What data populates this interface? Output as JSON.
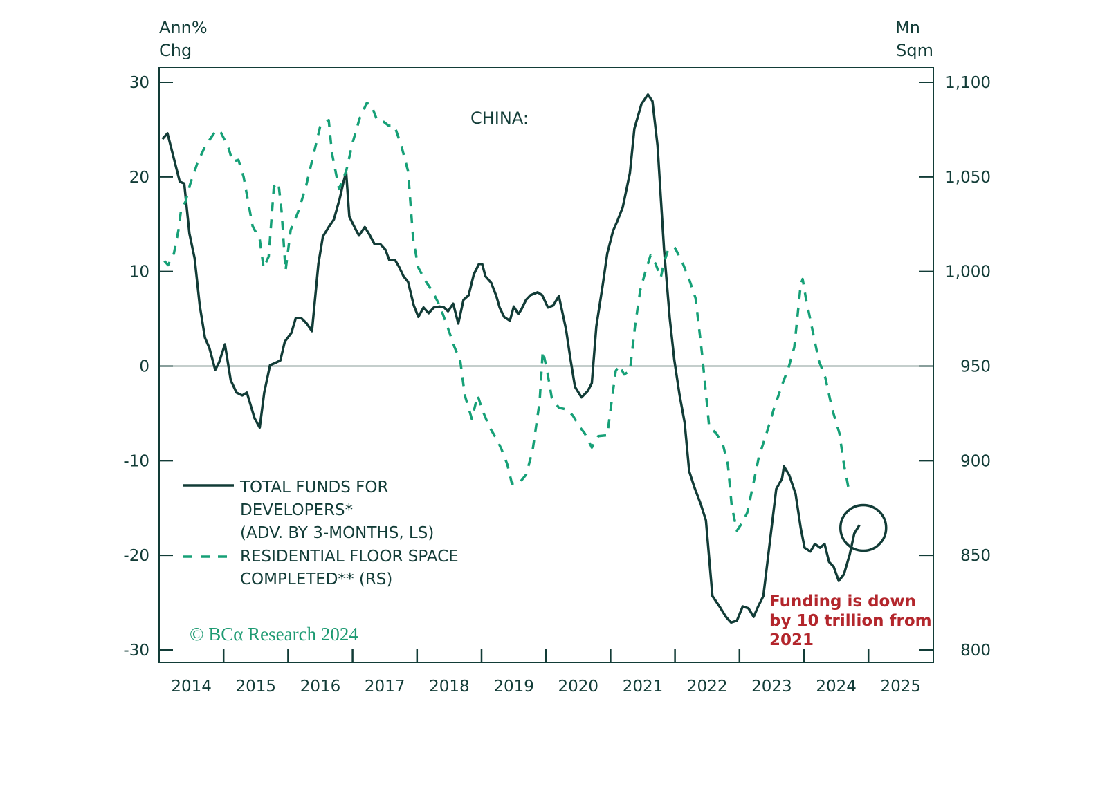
{
  "chart_data": {
    "type": "line",
    "title": "CHINA:",
    "left_axis": {
      "label_lines": [
        "Ann%",
        "Chg"
      ],
      "range": [
        -30,
        30
      ],
      "ticks": [
        30,
        20,
        10,
        0,
        -10,
        -20,
        -30
      ],
      "tick_labels": [
        "30",
        "20",
        "10",
        "0",
        "-10",
        "-20",
        "-30"
      ]
    },
    "right_axis": {
      "label_lines": [
        "Mn",
        "Sqm"
      ],
      "range": [
        800,
        1100
      ],
      "ticks": [
        1100,
        1050,
        1000,
        950,
        900,
        850,
        800
      ],
      "tick_labels": [
        "1,100",
        "1,050",
        "1,000",
        "950",
        "900",
        "850",
        "800"
      ]
    },
    "x_axis": {
      "range": [
        2014,
        2026
      ],
      "tick_labels": [
        "2014",
        "2015",
        "2016",
        "2017",
        "2018",
        "2019",
        "2020",
        "2021",
        "2022",
        "2023",
        "2024",
        "2025"
      ]
    },
    "grid": false,
    "zero_line": true,
    "legend_placement": "bottom-left",
    "legend": [
      {
        "lines": [
          "TOTAL FUNDS FOR",
          "DEVELOPERS*",
          "(ADV. BY 3-MONTHS, LS)"
        ],
        "style": "solid"
      },
      {
        "lines": [
          "RESIDENTIAL FLOOR SPACE",
          "COMPLETED** (RS)"
        ],
        "style": "dashed"
      }
    ],
    "colors": {
      "funds": "#123c37",
      "floor_space": "#16a077",
      "annotation": "#b3262c",
      "axis": "#123c37"
    },
    "series": [
      {
        "name": "TOTAL FUNDS FOR DEVELOPERS* (ADV. BY 3-MONTHS, LS)",
        "axis": "left",
        "style": "solid",
        "x": [
          2014.05,
          2014.13,
          2014.32,
          2014.39,
          2014.47,
          2014.55,
          2014.63,
          2014.71,
          2014.78,
          2014.87,
          2014.93,
          2015.02,
          2015.11,
          2015.2,
          2015.29,
          2015.36,
          2015.48,
          2015.56,
          2015.63,
          2015.72,
          2015.79,
          2015.88,
          2015.95,
          2016.05,
          2016.12,
          2016.2,
          2016.29,
          2016.37,
          2016.47,
          2016.54,
          2016.63,
          2016.71,
          2016.8,
          2016.86,
          2016.9,
          2016.95,
          2017.03,
          2017.1,
          2017.19,
          2017.27,
          2017.34,
          2017.43,
          2017.51,
          2017.57,
          2017.66,
          2017.72,
          2017.79,
          2017.86,
          2017.95,
          2018.02,
          2018.1,
          2018.18,
          2018.26,
          2018.35,
          2018.42,
          2018.48,
          2018.56,
          2018.64,
          2018.72,
          2018.8,
          2018.88,
          2018.96,
          2019.01,
          2019.06,
          2019.15,
          2019.23,
          2019.28,
          2019.35,
          2019.44,
          2019.5,
          2019.57,
          2019.61,
          2019.69,
          2019.76,
          2019.87,
          2019.94,
          2020.03,
          2020.11,
          2020.2,
          2020.31,
          2020.38,
          2020.45,
          2020.55,
          2020.65,
          2020.71,
          2020.78,
          2020.88,
          2020.95,
          2021.04,
          2021.11,
          2021.19,
          2021.3,
          2021.37,
          2021.48,
          2021.58,
          2021.65,
          2021.73,
          2021.83,
          2021.92,
          2021.99,
          2022.07,
          2022.15,
          2022.22,
          2022.3,
          2022.4,
          2022.48,
          2022.58,
          2022.69,
          2022.79,
          2022.87,
          2022.96,
          2023.05,
          2023.14,
          2023.22,
          2023.29,
          2023.37,
          2023.46,
          2023.57,
          2023.66,
          2023.69,
          2023.77,
          2023.87,
          2023.95,
          2024.01,
          2024.1,
          2024.17,
          2024.25,
          2024.32,
          2024.39,
          2024.46,
          2024.54,
          2024.62,
          2024.71,
          2024.78,
          2024.86
        ],
        "y": [
          24,
          24.6,
          19.5,
          19.3,
          14,
          11.4,
          6.4,
          3,
          1.9,
          -0.4,
          0.4,
          2.3,
          -1.5,
          -2.8,
          -3.1,
          -2.8,
          -5.5,
          -6.5,
          -2.8,
          0.1,
          0.3,
          0.6,
          2.6,
          3.5,
          5.1,
          5.1,
          4.5,
          3.7,
          10.8,
          13.7,
          14.7,
          15.5,
          17.7,
          19.5,
          20.5,
          15.8,
          14.7,
          13.8,
          14.7,
          13.8,
          12.9,
          12.9,
          12.3,
          11.2,
          11.2,
          10.5,
          9.5,
          8.9,
          6.4,
          5.2,
          6.2,
          5.6,
          6.2,
          6.3,
          6.2,
          5.8,
          6.6,
          4.5,
          7,
          7.5,
          9.7,
          10.8,
          10.8,
          9.5,
          8.8,
          7.4,
          6.2,
          5.2,
          4.8,
          6.3,
          5.5,
          5.9,
          7,
          7.5,
          7.8,
          7.5,
          6.2,
          6.4,
          7.4,
          3.9,
          0.7,
          -2.2,
          -3.3,
          -2.6,
          -1.8,
          4.2,
          8.6,
          11.9,
          14.3,
          15.4,
          16.8,
          20.4,
          25.1,
          27.7,
          28.7,
          28,
          23.3,
          12.3,
          5,
          0.6,
          -3,
          -6,
          -11.1,
          -12.8,
          -14.6,
          -16.3,
          -24.3,
          -25.4,
          -26.5,
          -27.1,
          -26.9,
          -25.4,
          -25.6,
          -26.5,
          -25.4,
          -24.3,
          -19.2,
          -13,
          -11.9,
          -10.6,
          -11.5,
          -13.5,
          -17.1,
          -19.2,
          -19.6,
          -18.8,
          -19.2,
          -18.8,
          -20.7,
          -21.2,
          -22.7,
          -22,
          -19.9,
          -17.7,
          -16.8
        ]
      },
      {
        "name": "RESIDENTIAL FLOOR SPACE COMPLETED** (RS)",
        "axis": "right",
        "style": "dashed",
        "x": [
          2014.08,
          2014.14,
          2014.23,
          2014.3,
          2014.34,
          2014.41,
          2014.48,
          2014.59,
          2014.71,
          2014.86,
          2014.94,
          2015.07,
          2015.14,
          2015.23,
          2015.31,
          2015.45,
          2015.56,
          2015.62,
          2015.7,
          2015.78,
          2015.85,
          2015.9,
          2015.96,
          2016.04,
          2016.15,
          2016.27,
          2016.41,
          2016.5,
          2016.63,
          2016.68,
          2016.79,
          2016.9,
          2017.0,
          2017.11,
          2017.22,
          2017.29,
          2017.38,
          2017.45,
          2017.56,
          2017.65,
          2017.76,
          2017.86,
          2017.94,
          2018.02,
          2018.13,
          2018.24,
          2018.35,
          2018.45,
          2018.58,
          2018.67,
          2018.74,
          2018.85,
          2018.94,
          2019.01,
          2019.12,
          2019.24,
          2019.31,
          2019.4,
          2019.47,
          2019.58,
          2019.69,
          2019.79,
          2019.9,
          2019.95,
          2020.01,
          2020.09,
          2020.2,
          2020.33,
          2020.42,
          2020.52,
          2020.6,
          2020.71,
          2020.81,
          2020.95,
          2021.03,
          2021.08,
          2021.14,
          2021.21,
          2021.3,
          2021.38,
          2021.46,
          2021.53,
          2021.62,
          2021.7,
          2021.78,
          2021.83,
          2021.89,
          2021.99,
          2022.1,
          2022.21,
          2022.32,
          2022.42,
          2022.53,
          2022.64,
          2022.74,
          2022.82,
          2022.88,
          2022.96,
          2023.03,
          2023.12,
          2023.21,
          2023.3,
          2023.42,
          2023.53,
          2023.66,
          2023.76,
          2023.85,
          2023.89,
          2023.95,
          2023.98,
          2024.03,
          2024.12,
          2024.23,
          2024.33,
          2024.44,
          2024.55,
          2024.62,
          2024.71
        ],
        "y": [
          1005.6,
          1003.4,
          1009.6,
          1022,
          1032.6,
          1037,
          1046,
          1057,
          1066,
          1073.5,
          1074.6,
          1066,
          1058,
          1059,
          1050,
          1024,
          1017,
          1002,
          1008,
          1045,
          1047,
          1031.5,
          1000.4,
          1022,
          1031,
          1044,
          1064,
          1077,
          1080,
          1062.6,
          1043.6,
          1053,
          1068,
          1081,
          1089,
          1088,
          1080,
          1080,
          1077,
          1077,
          1066,
          1053,
          1017,
          1002,
          995,
          989.5,
          982,
          973,
          960,
          953,
          934.6,
          922,
          934.6,
          927,
          918,
          911,
          906,
          898,
          888,
          888,
          892.6,
          905,
          931,
          958,
          949,
          933,
          928,
          927,
          923.7,
          918,
          914.5,
          907,
          913,
          913.5,
          934.6,
          947.4,
          950.4,
          945.6,
          947.4,
          971,
          990,
          998.6,
          1008.5,
          1004,
          996.8,
          1004.8,
          1011,
          1013,
          1006,
          996.8,
          985.8,
          956.6,
          918,
          914.5,
          909,
          898,
          876,
          863,
          866.6,
          872.5,
          887,
          902,
          914.5,
          927,
          940,
          949,
          960,
          973,
          993,
          996,
          985.8,
          971,
          953,
          944,
          927,
          914.5,
          898,
          882
        ]
      }
    ],
    "annotations": [
      {
        "text_lines": [
          "Funding is down",
          "by 10 trillion from",
          "2021"
        ],
        "circle_center": {
          "x": 2024.92,
          "y": -17.1
        }
      }
    ],
    "copyright": "© BCα Research 2024"
  }
}
